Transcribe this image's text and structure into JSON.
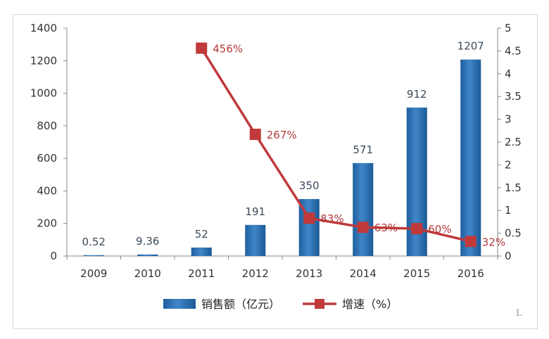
{
  "chart_data": {
    "type": "bar",
    "categories": [
      "2009",
      "2010",
      "2011",
      "2012",
      "2013",
      "2014",
      "2015",
      "2016"
    ],
    "series": [
      {
        "name": "销售额（亿元）",
        "type": "bar",
        "axis": "left",
        "values": [
          0.52,
          9.36,
          52,
          191,
          350,
          571,
          912,
          1207
        ],
        "labels": [
          "0.52",
          "9.36",
          "52",
          "191",
          "350",
          "571",
          "912",
          "1207"
        ],
        "color": "#2e75b6"
      },
      {
        "name": "增速（%）",
        "type": "line",
        "axis": "right",
        "x": [
          "2011",
          "2012",
          "2013",
          "2014",
          "2015",
          "2016"
        ],
        "values": [
          4.56,
          2.67,
          0.83,
          0.63,
          0.6,
          0.32
        ],
        "labels": [
          "456%",
          "267%",
          "83%",
          "63%",
          "60%",
          "32%"
        ],
        "color": "#c0393b"
      }
    ],
    "y_left": {
      "ylim": [
        0,
        1400
      ],
      "ticks": [
        "0",
        "200",
        "400",
        "600",
        "800",
        "1000",
        "1200",
        "1400"
      ]
    },
    "y_right": {
      "ylim": [
        0,
        5
      ],
      "ticks": [
        "0",
        "0.5",
        "1",
        "1.5",
        "2",
        "2.5",
        "3",
        "3.5",
        "4",
        "4.5",
        "5"
      ]
    },
    "grid": false,
    "legend": "bottom",
    "title": "",
    "xlabel": "",
    "ylabel": ""
  },
  "corner_mark": "L"
}
